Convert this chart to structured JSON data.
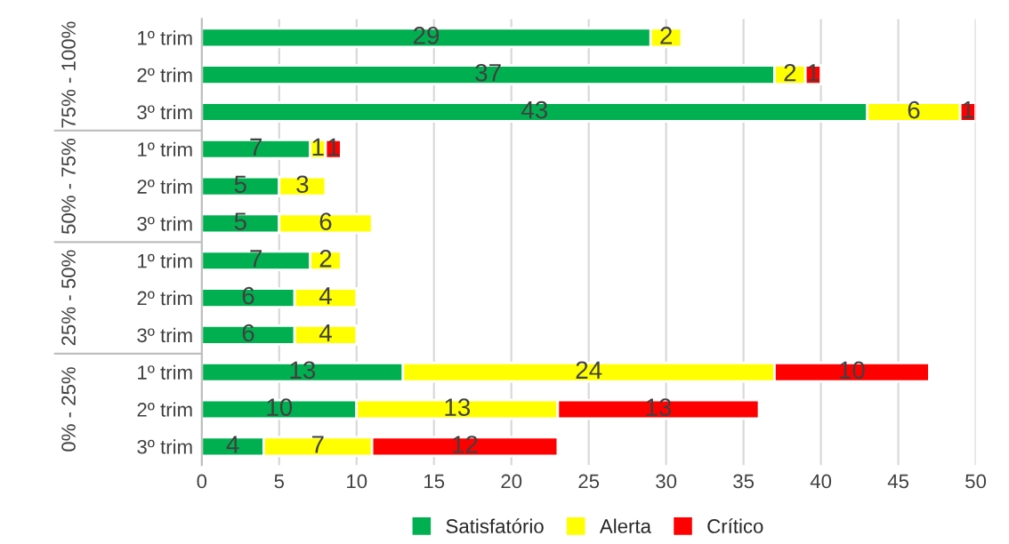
{
  "chart_data": {
    "type": "bar",
    "orientation": "horizontal",
    "stacked": true,
    "categories": [
      "1º trim",
      "2º trim",
      "3º trim",
      "1º trim",
      "2º trim",
      "3º trim",
      "1º trim",
      "2º trim",
      "3º trim",
      "1º trim",
      "2º trim",
      "3º trim"
    ],
    "series": [
      {
        "name": "Satisfatório",
        "color": "#00b050",
        "values": [
          29,
          37,
          43,
          7,
          5,
          5,
          7,
          6,
          6,
          13,
          10,
          4
        ]
      },
      {
        "name": "Alerta",
        "color": "#ffff00",
        "values": [
          2,
          2,
          6,
          1,
          3,
          6,
          2,
          4,
          4,
          24,
          13,
          7
        ]
      },
      {
        "name": "Crítico",
        "color": "#ff0000",
        "values": [
          null,
          1,
          1,
          1,
          null,
          null,
          null,
          null,
          null,
          10,
          13,
          12
        ]
      }
    ],
    "annotations": [
      "75% - 100%",
      "50% - 75%",
      "25% - 50%",
      "0% - 25%"
    ],
    "xlim": [
      0,
      50
    ],
    "xticks": [
      0,
      5,
      10,
      15,
      20,
      25,
      30,
      35,
      40,
      45,
      50
    ],
    "grid": "x",
    "legend": "bottom",
    "data_labels": true
  }
}
